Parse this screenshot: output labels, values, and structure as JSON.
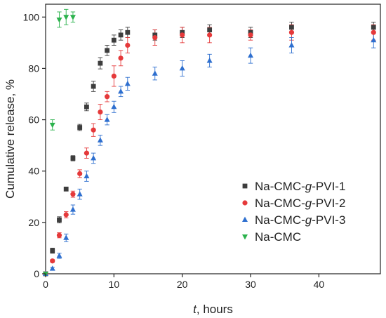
{
  "chart_data": {
    "type": "scatter",
    "xlabel_var": "t",
    "xlabel_unit": ", hours",
    "ylabel": "Cumulative release, %",
    "xlim": [
      0,
      49
    ],
    "ylim": [
      0,
      105
    ],
    "x_ticks": [
      0,
      10,
      20,
      30,
      40
    ],
    "y_ticks": [
      0,
      20,
      40,
      60,
      80,
      100
    ],
    "grid": false,
    "legend_position": "bottom-right",
    "series": [
      {
        "name_prefix": "Na-CMC-",
        "name_italic": "g",
        "name_suffix": "-PVI-1",
        "marker": "square",
        "color": "#3d3d3d",
        "x": [
          0,
          1,
          2,
          3,
          4,
          5,
          6,
          7,
          8,
          9,
          10,
          11,
          12,
          16,
          20,
          24,
          30,
          36,
          48
        ],
        "y": [
          0,
          9,
          21,
          33,
          45,
          57,
          65,
          73,
          82,
          87,
          91,
          93,
          94,
          93,
          94,
          95,
          94,
          96,
          96
        ],
        "err": [
          0,
          1,
          1.2,
          0.5,
          1,
          1.2,
          1.5,
          2,
          2.2,
          2,
          2,
          2,
          2,
          2,
          2,
          2,
          2,
          2,
          2
        ]
      },
      {
        "name_prefix": "Na-CMC-",
        "name_italic": "g",
        "name_suffix": "-PVI-2",
        "marker": "circle",
        "color": "#e5393a",
        "x": [
          0,
          1,
          2,
          3,
          4,
          5,
          6,
          7,
          8,
          9,
          10,
          11,
          12,
          16,
          20,
          24,
          30,
          36,
          48
        ],
        "y": [
          0,
          5,
          15,
          23,
          31,
          39,
          47,
          56,
          63,
          69,
          77,
          84,
          89,
          92,
          93,
          93,
          93,
          94,
          94
        ],
        "err": [
          0,
          0.5,
          1,
          1.2,
          1.2,
          1.5,
          2,
          2.5,
          3,
          2,
          4,
          3,
          3,
          3,
          3,
          3,
          2,
          3,
          3
        ]
      },
      {
        "name_prefix": "Na-CMC-",
        "name_italic": "g",
        "name_suffix": "-PVI-3",
        "marker": "triangle-up",
        "color": "#2e6fcf",
        "x": [
          0,
          1,
          2,
          3,
          4,
          5,
          6,
          7,
          8,
          9,
          10,
          11,
          12,
          16,
          20,
          24,
          30,
          36,
          48
        ],
        "y": [
          0,
          2,
          7,
          14,
          25,
          31,
          38,
          45,
          52,
          60,
          65,
          71,
          74,
          78,
          80,
          83,
          85,
          89,
          91
        ],
        "err": [
          0,
          0.5,
          1,
          1.5,
          1.8,
          2,
          2,
          2,
          2,
          2,
          2.2,
          2,
          2.5,
          2.5,
          3,
          2.5,
          3,
          3,
          3
        ]
      },
      {
        "name": "Na-CMC",
        "marker": "triangle-down",
        "color": "#2bb24c",
        "x": [
          0,
          1,
          2,
          3,
          4
        ],
        "y": [
          0,
          58,
          99,
          100,
          100
        ],
        "err": [
          0,
          2,
          3,
          3,
          2
        ]
      }
    ]
  }
}
